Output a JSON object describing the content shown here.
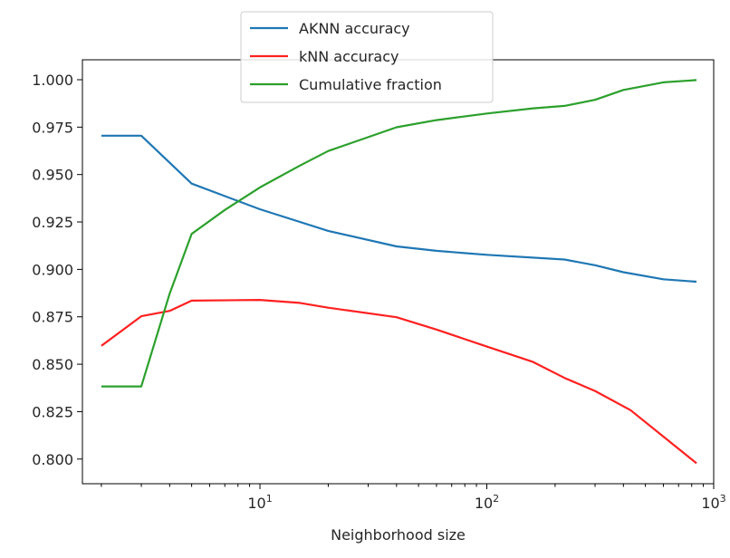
{
  "chart_data": {
    "type": "line",
    "xscale": "log",
    "xlabel": "Neighborhood size",
    "ylabel": "",
    "title": "",
    "xlim": [
      1.65,
      1000
    ],
    "ylim": [
      0.787,
      1.0105
    ],
    "xticks": [
      {
        "value": 10,
        "base": "10",
        "exp": "1"
      },
      {
        "value": 100,
        "base": "10",
        "exp": "2"
      },
      {
        "value": 1000,
        "base": "10",
        "exp": "3"
      }
    ],
    "yticks": [
      {
        "value": 0.8,
        "label": "0.800"
      },
      {
        "value": 0.825,
        "label": "0.825"
      },
      {
        "value": 0.85,
        "label": "0.850"
      },
      {
        "value": 0.875,
        "label": "0.875"
      },
      {
        "value": 0.9,
        "label": "0.900"
      },
      {
        "value": 0.925,
        "label": "0.925"
      },
      {
        "value": 0.95,
        "label": "0.950"
      },
      {
        "value": 0.975,
        "label": "0.975"
      },
      {
        "value": 1.0,
        "label": "1.000"
      }
    ],
    "grid": false,
    "legend": "upper-center",
    "series": [
      {
        "name": "AKNN accuracy",
        "color": "#1f77b4",
        "x": [
          2,
          3,
          5,
          10,
          20,
          40,
          60,
          100,
          220,
          300,
          400,
          600,
          840
        ],
        "y": [
          0.9705,
          0.9705,
          0.9452,
          0.9317,
          0.9203,
          0.9121,
          0.9098,
          0.9077,
          0.9052,
          0.9022,
          0.8985,
          0.8948,
          0.8935
        ]
      },
      {
        "name": "kNN accuracy",
        "color": "#ff2020",
        "x": [
          2,
          3,
          4,
          5,
          10,
          15,
          20,
          40,
          60,
          100,
          160,
          220,
          300,
          430,
          840
        ],
        "y": [
          0.8597,
          0.8753,
          0.8781,
          0.8835,
          0.8839,
          0.8823,
          0.8798,
          0.8748,
          0.8683,
          0.8593,
          0.8512,
          0.8428,
          0.8359,
          0.8258,
          0.7978
        ]
      },
      {
        "name": "Cumulative fraction",
        "color": "#2ca02c",
        "x": [
          2,
          3,
          4,
          5,
          7,
          10,
          15,
          20,
          40,
          60,
          100,
          160,
          220,
          300,
          400,
          600,
          840
        ],
        "y": [
          0.8383,
          0.8383,
          0.8872,
          0.9187,
          0.9313,
          0.9432,
          0.9547,
          0.9624,
          0.9749,
          0.9787,
          0.9822,
          0.9849,
          0.9862,
          0.9894,
          0.9946,
          0.9986,
          0.9998
        ]
      }
    ]
  }
}
